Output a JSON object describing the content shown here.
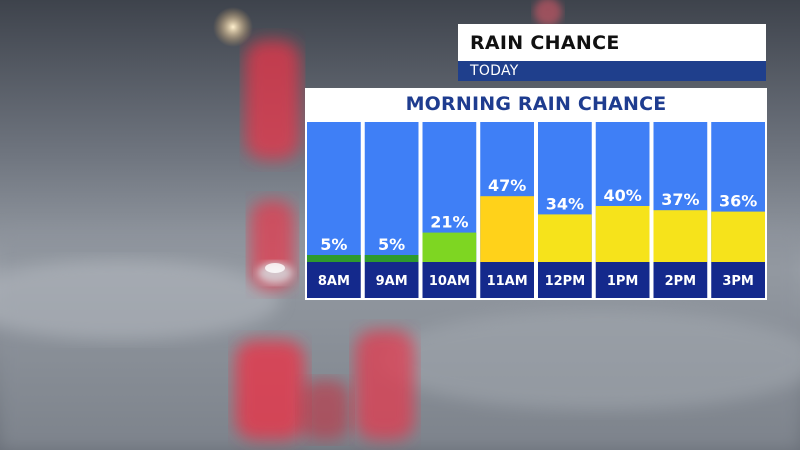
{
  "header": {
    "title": "RAIN CHANCE",
    "subtitle": "TODAY"
  },
  "colors": {
    "column_bg": "#3f7ff6",
    "label_band": "#14298c",
    "header_blue": "#1e3c8f",
    "low": "#2e9a2e",
    "mid": "#7ed622",
    "high": "#f6e31b",
    "peak": "#ffd21a"
  },
  "chart_data": {
    "type": "bar",
    "title": "MORNING RAIN CHANCE",
    "categories": [
      "8AM",
      "9AM",
      "10AM",
      "11AM",
      "12PM",
      "1PM",
      "2PM",
      "3PM"
    ],
    "values": [
      5,
      5,
      21,
      47,
      34,
      40,
      37,
      36
    ],
    "value_labels": [
      "5%",
      "5%",
      "21%",
      "47%",
      "34%",
      "40%",
      "37%",
      "36%"
    ],
    "bar_colors": [
      "#2e9a2e",
      "#2e9a2e",
      "#7ed622",
      "#ffd21a",
      "#f6e31b",
      "#f6e31b",
      "#f6e31b",
      "#f6e31b"
    ],
    "ylim": [
      0,
      100
    ],
    "grid": false,
    "legend": "none"
  }
}
